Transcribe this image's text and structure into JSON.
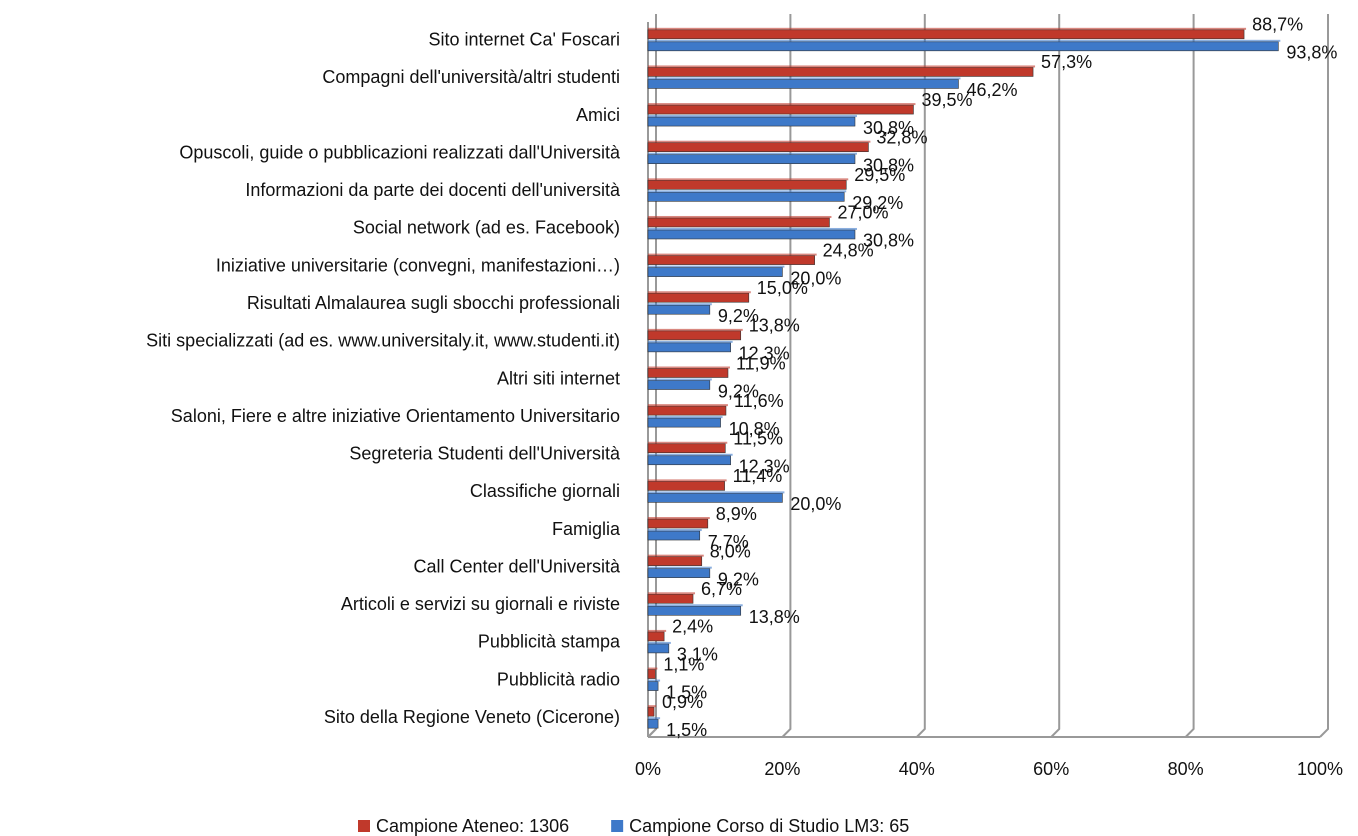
{
  "chart_data": {
    "type": "bar",
    "orientation": "horizontal",
    "categories": [
      "Sito internet Ca' Foscari",
      "Compagni dell'università/altri studenti",
      "Amici",
      "Opuscoli, guide o pubblicazioni realizzati dall'Università",
      "Informazioni da parte dei docenti dell'università",
      "Social network (ad es. Facebook)",
      "Iniziative universitarie (convegni, manifestazioni…)",
      "Risultati Almalaurea sugli sbocchi professionali",
      "Siti specializzati (ad es. www.universitaly.it, www.studenti.it)",
      "Altri siti internet",
      "Saloni, Fiere e altre iniziative Orientamento Universitario",
      "Segreteria Studenti dell'Università",
      "Classifiche giornali",
      "Famiglia",
      "Call Center dell'Università",
      "Articoli e servizi su giornali e riviste",
      "Pubblicità stampa",
      "Pubblicità radio",
      "Sito della Regione Veneto (Cicerone)"
    ],
    "series": [
      {
        "name": "Campione Ateneo: 1306",
        "color": "#c0392b",
        "values": [
          88.7,
          57.3,
          39.5,
          32.8,
          29.5,
          27.0,
          24.8,
          15.0,
          13.8,
          11.9,
          11.6,
          11.5,
          11.4,
          8.9,
          8.0,
          6.7,
          2.4,
          1.1,
          0.9
        ],
        "value_labels": [
          "88,7%",
          "57,3%",
          "39,5%",
          "32,8%",
          "29,5%",
          "27,0%",
          "24,8%",
          "15,0%",
          "13,8%",
          "11,9%",
          "11,6%",
          "11,5%",
          "11,4%",
          "8,9%",
          "8,0%",
          "6,7%",
          "2,4%",
          "1,1%",
          "0,9%"
        ]
      },
      {
        "name": "Campione Corso di Studio LM3: 65",
        "color": "#3e79c9",
        "values": [
          93.8,
          46.2,
          30.8,
          30.8,
          29.2,
          30.8,
          20.0,
          9.2,
          12.3,
          9.2,
          10.8,
          12.3,
          20.0,
          7.7,
          9.2,
          13.8,
          3.1,
          1.5,
          1.5
        ],
        "value_labels": [
          "93,8%",
          "46,2%",
          "30,8%",
          "30,8%",
          "29,2%",
          "30,8%",
          "20,0%",
          "9,2%",
          "12,3%",
          "9,2%",
          "10,8%",
          "12,3%",
          "20,0%",
          "7,7%",
          "9,2%",
          "13,8%",
          "3,1%",
          "1,5%",
          "1,5%"
        ]
      }
    ],
    "xlim": [
      0,
      100
    ],
    "xticks": [
      {
        "value": 0,
        "label": "0%"
      },
      {
        "value": 20,
        "label": "20%"
      },
      {
        "value": 40,
        "label": "40%"
      },
      {
        "value": 60,
        "label": "60%"
      },
      {
        "value": 80,
        "label": "80%"
      },
      {
        "value": 100,
        "label": "100%"
      }
    ],
    "grid": true,
    "legend": "bottom"
  }
}
